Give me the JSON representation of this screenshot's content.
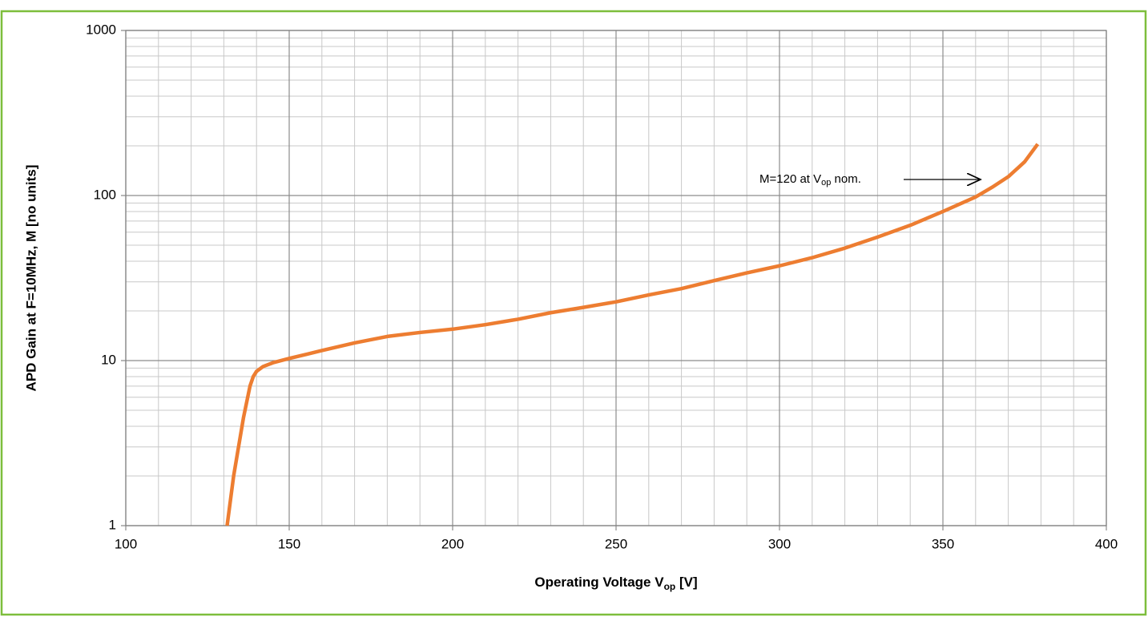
{
  "chart_data": {
    "type": "line",
    "xlabel": [
      "Operating Voltage V",
      "op",
      " [V]"
    ],
    "ylabel": "APD Gain at F=10MHz, M [no units]",
    "annotation": [
      "M=120 at V",
      "op",
      " nom."
    ],
    "x": [
      131,
      133,
      136,
      138,
      139,
      140,
      142,
      145,
      150,
      160,
      170,
      180,
      190,
      200,
      210,
      220,
      230,
      240,
      250,
      260,
      270,
      280,
      290,
      300,
      310,
      320,
      330,
      340,
      350,
      360,
      365,
      370,
      375,
      379
    ],
    "series": [
      {
        "color": "#ED7D31",
        "values": [
          1,
          2,
          4.5,
          7,
          8,
          8.6,
          9.2,
          9.7,
          10.3,
          11.5,
          12.8,
          14,
          14.8,
          15.5,
          16.5,
          17.8,
          19.5,
          21,
          22.7,
          25,
          27.3,
          30.5,
          34,
          37.5,
          42,
          48,
          56,
          66,
          80,
          98,
          112,
          130,
          160,
          205
        ]
      }
    ],
    "xlim": [
      100,
      400
    ],
    "xticks": [
      100,
      150,
      200,
      250,
      300,
      350,
      400
    ],
    "xminor": [
      110,
      120,
      130,
      140,
      160,
      170,
      180,
      190,
      210,
      220,
      230,
      240,
      260,
      270,
      280,
      290,
      310,
      320,
      330,
      340,
      360,
      370,
      380,
      390
    ],
    "ylim": [
      1,
      1000
    ],
    "yticks": [
      1,
      10,
      100,
      1000
    ],
    "yminor": [
      2,
      3,
      4,
      5,
      6,
      7,
      8,
      9,
      20,
      30,
      40,
      50,
      60,
      70,
      80,
      90,
      200,
      300,
      400,
      500,
      600,
      700,
      800,
      900
    ],
    "yscale": "log",
    "grid": true
  }
}
